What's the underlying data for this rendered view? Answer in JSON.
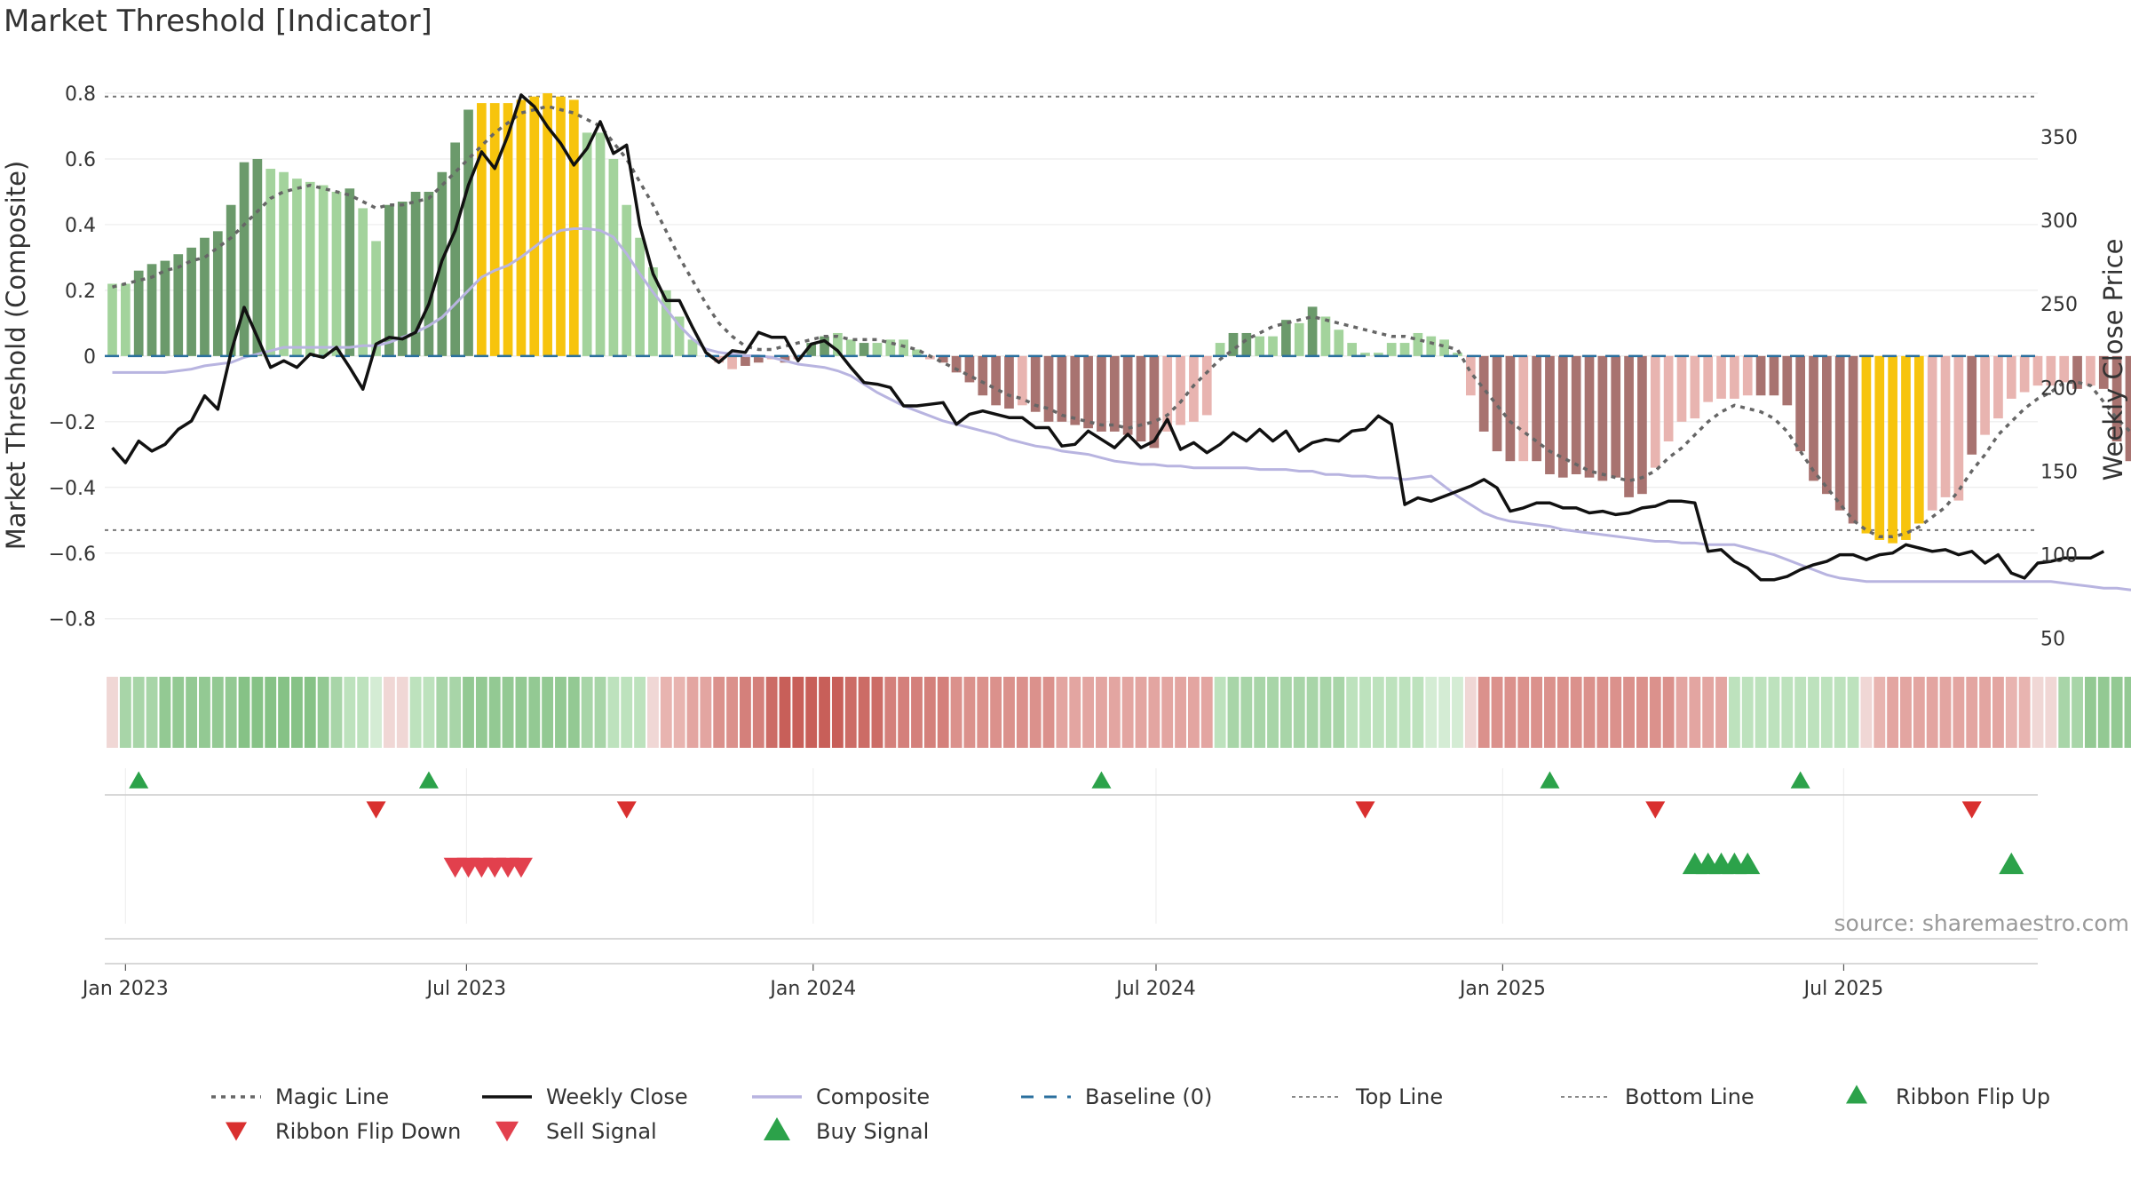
{
  "chart_data": {
    "type": "bar",
    "title": "Market Threshold [Indicator]",
    "ylabel": "Market Threshold (Composite)",
    "y2label": "Weekly Close Price",
    "ylim": [
      -0.89,
      0.8
    ],
    "y2lim": [
      44,
      376
    ],
    "yticks": [
      "0.8",
      "0.6",
      "0.4",
      "0.2",
      "0",
      "−0.2",
      "−0.4",
      "−0.6",
      "−0.8"
    ],
    "y2ticks": [
      "350",
      "300",
      "250",
      "200",
      "150",
      "100",
      "50"
    ],
    "xticks": [
      "Jan 2023",
      "Jul 2023",
      "Jan 2024",
      "Jul 2024",
      "Jan 2025",
      "Jul 2025"
    ],
    "x_range": [
      "2022-12-21",
      "2025-10-12"
    ],
    "weeks_start": "2022-12-25",
    "top_line": 0.79,
    "bottom_line": -0.53,
    "composite_bars": [
      0.22,
      0.22,
      0.26,
      0.28,
      0.29,
      0.31,
      0.33,
      0.36,
      0.38,
      0.46,
      0.59,
      0.6,
      0.57,
      0.56,
      0.54,
      0.53,
      0.52,
      0.5,
      0.51,
      0.45,
      0.35,
      0.46,
      0.47,
      0.5,
      0.5,
      0.56,
      0.65,
      0.75,
      0.77,
      0.77,
      0.77,
      0.78,
      0.79,
      0.8,
      0.79,
      0.78,
      0.68,
      0.68,
      0.6,
      0.46,
      0.36,
      0.27,
      0.2,
      0.12,
      0.05,
      0,
      -0.02,
      -0.04,
      -0.03,
      -0.02,
      -0.01,
      -0.02,
      -0.01,
      0.04,
      0.06,
      0.07,
      0.05,
      0.04,
      0.04,
      0.05,
      0.05,
      0.02,
      -0.01,
      -0.02,
      -0.05,
      -0.08,
      -0.12,
      -0.15,
      -0.16,
      -0.15,
      -0.17,
      -0.2,
      -0.2,
      -0.21,
      -0.22,
      -0.23,
      -0.23,
      -0.24,
      -0.26,
      -0.28,
      -0.23,
      -0.21,
      -0.2,
      -0.18,
      0.04,
      0.07,
      0.07,
      0.06,
      0.06,
      0.11,
      0.1,
      0.15,
      0.12,
      0.08,
      0.04,
      0.01,
      0.01,
      0.04,
      0.04,
      0.07,
      0.06,
      0.05,
      0.01,
      -0.12,
      -0.23,
      -0.29,
      -0.32,
      -0.32,
      -0.32,
      -0.36,
      -0.37,
      -0.36,
      -0.37,
      -0.38,
      -0.37,
      -0.43,
      -0.42,
      -0.34,
      -0.26,
      -0.2,
      -0.19,
      -0.14,
      -0.13,
      -0.13,
      -0.12,
      -0.12,
      -0.12,
      -0.15,
      -0.29,
      -0.38,
      -0.42,
      -0.47,
      -0.51,
      -0.54,
      -0.56,
      -0.57,
      -0.56,
      -0.51,
      -0.47,
      -0.43,
      -0.44,
      -0.3,
      -0.24,
      -0.19,
      -0.13,
      -0.11,
      -0.09,
      -0.09,
      -0.08,
      -0.1,
      -0.09,
      -0.1,
      -0.26,
      -0.32,
      -0.38,
      -0.38,
      -0.4,
      -0.45,
      -0.48,
      -0.53,
      -0.48
    ],
    "bar_colors": [
      "#a3d39c",
      "#a3d39c",
      "#6b9a6b",
      "#6b9a6b",
      "#6b9a6b",
      "#6b9a6b",
      "#6b9a6b",
      "#6b9a6b",
      "#6b9a6b",
      "#6b9a6b",
      "#6b9a6b",
      "#6b9a6b",
      "#a3d39c",
      "#a3d39c",
      "#a3d39c",
      "#a3d39c",
      "#a3d39c",
      "#a3d39c",
      "#6b9a6b",
      "#a3d39c",
      "#a3d39c",
      "#6b9a6b",
      "#6b9a6b",
      "#6b9a6b",
      "#6b9a6b",
      "#6b9a6b",
      "#6b9a6b",
      "#6b9a6b",
      "#f7c40d",
      "#f7c40d",
      "#f7c40d",
      "#f7c40d",
      "#f7c40d",
      "#f7c40d",
      "#f7c40d",
      "#f7c40d",
      "#a3d39c",
      "#a3d39c",
      "#a3d39c",
      "#a3d39c",
      "#a3d39c",
      "#a3d39c",
      "#a3d39c",
      "#a3d39c",
      "#a3d39c",
      "#e8b4b0",
      "#e8b4b0",
      "#e8b4b0",
      "#a87370",
      "#a87370",
      "#e8b4b0",
      "#a87370",
      "#e8b4b0",
      "#6b9a6b",
      "#6b9a6b",
      "#a3d39c",
      "#a3d39c",
      "#6b9a6b",
      "#a3d39c",
      "#a3d39c",
      "#a3d39c",
      "#a3d39c",
      "#e8b4b0",
      "#a87370",
      "#a87370",
      "#a87370",
      "#a87370",
      "#a87370",
      "#a87370",
      "#e8b4b0",
      "#a87370",
      "#a87370",
      "#a87370",
      "#a87370",
      "#a87370",
      "#a87370",
      "#a87370",
      "#a87370",
      "#a87370",
      "#a87370",
      "#e8b4b0",
      "#e8b4b0",
      "#e8b4b0",
      "#e8b4b0",
      "#a3d39c",
      "#6b9a6b",
      "#6b9a6b",
      "#a3d39c",
      "#a3d39c",
      "#6b9a6b",
      "#a3d39c",
      "#6b9a6b",
      "#a3d39c",
      "#a3d39c",
      "#a3d39c",
      "#a3d39c",
      "#a3d39c",
      "#a3d39c",
      "#a3d39c",
      "#a3d39c",
      "#a3d39c",
      "#a3d39c",
      "#a3d39c",
      "#e8b4b0",
      "#a87370",
      "#a87370",
      "#a87370",
      "#e8b4b0",
      "#a87370",
      "#a87370",
      "#a87370",
      "#a87370",
      "#a87370",
      "#a87370",
      "#a87370",
      "#a87370",
      "#a87370",
      "#e8b4b0",
      "#e8b4b0",
      "#e8b4b0",
      "#e8b4b0",
      "#e8b4b0",
      "#e8b4b0",
      "#e8b4b0",
      "#e8b4b0",
      "#a87370",
      "#a87370",
      "#a87370",
      "#a87370",
      "#a87370",
      "#a87370",
      "#a87370",
      "#a87370",
      "#f7c40d",
      "#f7c40d",
      "#f7c40d",
      "#f7c40d",
      "#f7c40d",
      "#e8b4b0",
      "#e8b4b0",
      "#e8b4b0",
      "#a87370",
      "#e8b4b0",
      "#e8b4b0",
      "#e8b4b0",
      "#e8b4b0",
      "#e8b4b0",
      "#e8b4b0",
      "#e8b4b0",
      "#a87370",
      "#e8b4b0",
      "#a87370",
      "#a87370",
      "#a87370",
      "#a87370",
      "#a87370",
      "#a87370",
      "#f7c40d",
      "#e8b4b0"
    ],
    "series": [
      {
        "name": "Magic Line",
        "style": "dotted",
        "color": "#666666",
        "values": [
          0.21,
          0.22,
          0.23,
          0.24,
          0.26,
          0.27,
          0.29,
          0.3,
          0.33,
          0.36,
          0.4,
          0.44,
          0.48,
          0.5,
          0.51,
          0.52,
          0.51,
          0.5,
          0.49,
          0.47,
          0.45,
          0.46,
          0.46,
          0.47,
          0.48,
          0.52,
          0.56,
          0.6,
          0.64,
          0.68,
          0.71,
          0.74,
          0.75,
          0.76,
          0.75,
          0.74,
          0.72,
          0.7,
          0.65,
          0.6,
          0.53,
          0.46,
          0.38,
          0.3,
          0.23,
          0.16,
          0.1,
          0.06,
          0.03,
          0.02,
          0.02,
          0.03,
          0.04,
          0.05,
          0.06,
          0.06,
          0.05,
          0.05,
          0.05,
          0.04,
          0.03,
          0.02,
          0,
          -0.02,
          -0.04,
          -0.06,
          -0.08,
          -0.1,
          -0.12,
          -0.13,
          -0.15,
          -0.16,
          -0.18,
          -0.19,
          -0.2,
          -0.21,
          -0.21,
          -0.22,
          -0.21,
          -0.2,
          -0.18,
          -0.14,
          -0.09,
          -0.05,
          -0.01,
          0.02,
          0.05,
          0.07,
          0.09,
          0.1,
          0.11,
          0.12,
          0.11,
          0.1,
          0.09,
          0.08,
          0.07,
          0.06,
          0.06,
          0.05,
          0.04,
          0.03,
          0.02,
          -0.05,
          -0.1,
          -0.15,
          -0.2,
          -0.23,
          -0.26,
          -0.29,
          -0.31,
          -0.33,
          -0.35,
          -0.36,
          -0.37,
          -0.38,
          -0.37,
          -0.35,
          -0.31,
          -0.28,
          -0.24,
          -0.2,
          -0.17,
          -0.15,
          -0.16,
          -0.17,
          -0.19,
          -0.23,
          -0.29,
          -0.35,
          -0.4,
          -0.45,
          -0.5,
          -0.53,
          -0.55,
          -0.55,
          -0.54,
          -0.52,
          -0.49,
          -0.46,
          -0.41,
          -0.35,
          -0.3,
          -0.24,
          -0.2,
          -0.16,
          -0.13,
          -0.11,
          -0.08,
          -0.08,
          -0.09,
          -0.14,
          -0.19,
          -0.23,
          -0.26,
          -0.3,
          -0.34,
          -0.38,
          -0.4,
          -0.42
        ]
      },
      {
        "name": "Weekly Close",
        "style": "solid",
        "color": "#111111",
        "axis": "right",
        "values": [
          164,
          155,
          168,
          162,
          166,
          175,
          180,
          195,
          187,
          221,
          248,
          230,
          212,
          216,
          212,
          220,
          218,
          224,
          212,
          199,
          226,
          230,
          229,
          233,
          250,
          276,
          294,
          321,
          341,
          331,
          351,
          375,
          368,
          356,
          346,
          333,
          343,
          359,
          340,
          345,
          297,
          268,
          252,
          252,
          236,
          221,
          215,
          222,
          221,
          233,
          230,
          230,
          216,
          226,
          228,
          222,
          212,
          203,
          202,
          200,
          189,
          189,
          190,
          191,
          178,
          184,
          186,
          184,
          182,
          182,
          176,
          176,
          165,
          166,
          174,
          169,
          164,
          172,
          164,
          168,
          181,
          163,
          167,
          161,
          166,
          173,
          168,
          175,
          168,
          174,
          162,
          167,
          169,
          168,
          174,
          175,
          183,
          178,
          130,
          134,
          132,
          135,
          138,
          141,
          145,
          140,
          126,
          128,
          131,
          131,
          128,
          128,
          125,
          126,
          124,
          125,
          128,
          129,
          132,
          132,
          131,
          102,
          103,
          96,
          92,
          85,
          85,
          87,
          91,
          94,
          96,
          100,
          100,
          97,
          100,
          101,
          106,
          104,
          102,
          103,
          100,
          102,
          95,
          100,
          89,
          86,
          95,
          96,
          98,
          98,
          98,
          102
        ],
        "min": 85,
        "max": 375
      },
      {
        "name": "Composite",
        "style": "solid",
        "color": "#b8b4e0",
        "axis": "right",
        "values": [
          209,
          209,
          209,
          209,
          209,
          210,
          211,
          213,
          214,
          215,
          218,
          220,
          222,
          224,
          224,
          224,
          224,
          224,
          224,
          225,
          225,
          227,
          230,
          233,
          237,
          242,
          250,
          258,
          266,
          270,
          273,
          278,
          284,
          290,
          294,
          295,
          295,
          294,
          290,
          280,
          268,
          257,
          247,
          237,
          229,
          223,
          221,
          220,
          219,
          219,
          218,
          216,
          214,
          213,
          212,
          210,
          207,
          202,
          197,
          193,
          189,
          186,
          183,
          180,
          178,
          176,
          174,
          172,
          169,
          167,
          165,
          164,
          162,
          161,
          160,
          158,
          156,
          155,
          154,
          154,
          153,
          153,
          152,
          152,
          152,
          152,
          152,
          151,
          151,
          151,
          150,
          150,
          148,
          148,
          147,
          147,
          146,
          146,
          145,
          146,
          147,
          141,
          135,
          130,
          125,
          122,
          120,
          119,
          118,
          117,
          115,
          114,
          113,
          112,
          111,
          110,
          109,
          108,
          108,
          107,
          107,
          106,
          106,
          106,
          104,
          102,
          100,
          97,
          94,
          91,
          88,
          86,
          85,
          84,
          84,
          84,
          84,
          84,
          84,
          84,
          84,
          84,
          84,
          84,
          84,
          84,
          84,
          84,
          83,
          82,
          81,
          80,
          80,
          79,
          79,
          78,
          78
        ]
      },
      {
        "name": "Baseline (0)",
        "style": "dashed",
        "color": "#2a6f9e"
      },
      {
        "name": "Top Line",
        "style": "dotted",
        "color": "#777777"
      },
      {
        "name": "Bottom Line",
        "style": "dotted",
        "color": "#777777"
      }
    ],
    "ribbon_colors": [
      "#f0d7d5",
      "#a8d5a8",
      "#a8d5a8",
      "#a8d5a8",
      "#93c993",
      "#93c993",
      "#93c993",
      "#93c993",
      "#93c993",
      "#93c993",
      "#86c286",
      "#86c286",
      "#86c286",
      "#86c286",
      "#86c286",
      "#86c286",
      "#93c993",
      "#a8d5a8",
      "#bde2bd",
      "#bde2bd",
      "#d4ecd4",
      "#f0d7d5",
      "#f0d7d5",
      "#bde2bd",
      "#bde2bd",
      "#a8d5a8",
      "#a8d5a8",
      "#93c993",
      "#93c993",
      "#93c993",
      "#93c993",
      "#93c993",
      "#93c993",
      "#93c993",
      "#93c993",
      "#93c993",
      "#a8d5a8",
      "#a8d5a8",
      "#bde2bd",
      "#bde2bd",
      "#bde2bd",
      "#f0d7d5",
      "#e8b4b0",
      "#e8b4b0",
      "#e3a5a1",
      "#e3a5a1",
      "#db918c",
      "#db918c",
      "#d4807b",
      "#d4807b",
      "#cc6c66",
      "#c85f59",
      "#c85f59",
      "#c85f59",
      "#c85f59",
      "#c85f59",
      "#cc6c66",
      "#cc6c66",
      "#cc6c66",
      "#d4807b",
      "#d4807b",
      "#d4807b",
      "#d4807b",
      "#d4807b",
      "#db918c",
      "#db918c",
      "#db918c",
      "#db918c",
      "#db918c",
      "#db918c",
      "#db918c",
      "#db918c",
      "#e3a5a1",
      "#e3a5a1",
      "#e3a5a1",
      "#e3a5a1",
      "#e3a5a1",
      "#e3a5a1",
      "#e3a5a1",
      "#e3a5a1",
      "#e3a5a1",
      "#e3a5a1",
      "#e3a5a1",
      "#e3a5a1",
      "#bde2bd",
      "#a8d5a8",
      "#a8d5a8",
      "#a8d5a8",
      "#a8d5a8",
      "#a8d5a8",
      "#a8d5a8",
      "#a8d5a8",
      "#a8d5a8",
      "#a8d5a8",
      "#bde2bd",
      "#bde2bd",
      "#bde2bd",
      "#bde2bd",
      "#bde2bd",
      "#bde2bd",
      "#d4ecd4",
      "#d4ecd4",
      "#d4ecd4",
      "#f0d7d5",
      "#db918c",
      "#db918c",
      "#db918c",
      "#db918c",
      "#db918c",
      "#db918c",
      "#db918c",
      "#db918c",
      "#db918c",
      "#db918c",
      "#db918c",
      "#db918c",
      "#db918c",
      "#db918c",
      "#db918c",
      "#e3a5a1",
      "#e3a5a1",
      "#e3a5a1",
      "#e3a5a1",
      "#bde2bd",
      "#bde2bd",
      "#bde2bd",
      "#bde2bd",
      "#bde2bd",
      "#bde2bd",
      "#bde2bd",
      "#bde2bd",
      "#bde2bd",
      "#bde2bd",
      "#f0d7d5",
      "#e8b4b0",
      "#e3a5a1",
      "#e3a5a1",
      "#e3a5a1",
      "#e3a5a1",
      "#e3a5a1",
      "#e3a5a1",
      "#e3a5a1",
      "#e3a5a1",
      "#e3a5a1",
      "#e8b4b0",
      "#e8b4b0",
      "#f0d7d5",
      "#f0d7d5",
      "#a8d5a8",
      "#a8d5a8",
      "#93c993",
      "#93c993",
      "#93c993",
      "#93c993",
      "#93c993",
      "#93c993",
      "#93c993",
      "#93c993",
      "#a8d5a8",
      "#e8b4b0",
      "#e8b4b0",
      "#e8b4b0",
      "#e8b4b0",
      "#e8b4b0",
      "#e3a5a1",
      "#e3a5a1",
      "#e3a5a1"
    ],
    "ribbon_flip_up": [
      "2023-01-08",
      "2023-06-11",
      "2024-06-02",
      "2025-01-26",
      "2025-06-08"
    ],
    "ribbon_flip_down": [
      "2023-05-14",
      "2023-09-24",
      "2024-10-20",
      "2025-03-23",
      "2025-09-07"
    ],
    "sell_signals": [
      "2023-06-25",
      "2023-07-02",
      "2023-07-09",
      "2023-07-16",
      "2023-07-23",
      "2023-07-30"
    ],
    "buy_signals": [
      "2025-04-13",
      "2025-04-20",
      "2025-04-27",
      "2025-05-04",
      "2025-05-11",
      "2025-09-28"
    ],
    "colors": {
      "up": "#2ca24a",
      "flip_down": "#d9302f",
      "sell": "#e2404d",
      "buy": "#2ca24a",
      "gold": "#f7c40d"
    },
    "source": "source: sharemaestro.com",
    "legend": [
      "Magic Line",
      "Weekly Close",
      "Composite",
      "Baseline (0)",
      "Top Line",
      "Bottom Line",
      "Ribbon Flip Up",
      "Ribbon Flip Down",
      "Sell Signal",
      "Buy Signal"
    ],
    "legend_position": "bottom"
  }
}
